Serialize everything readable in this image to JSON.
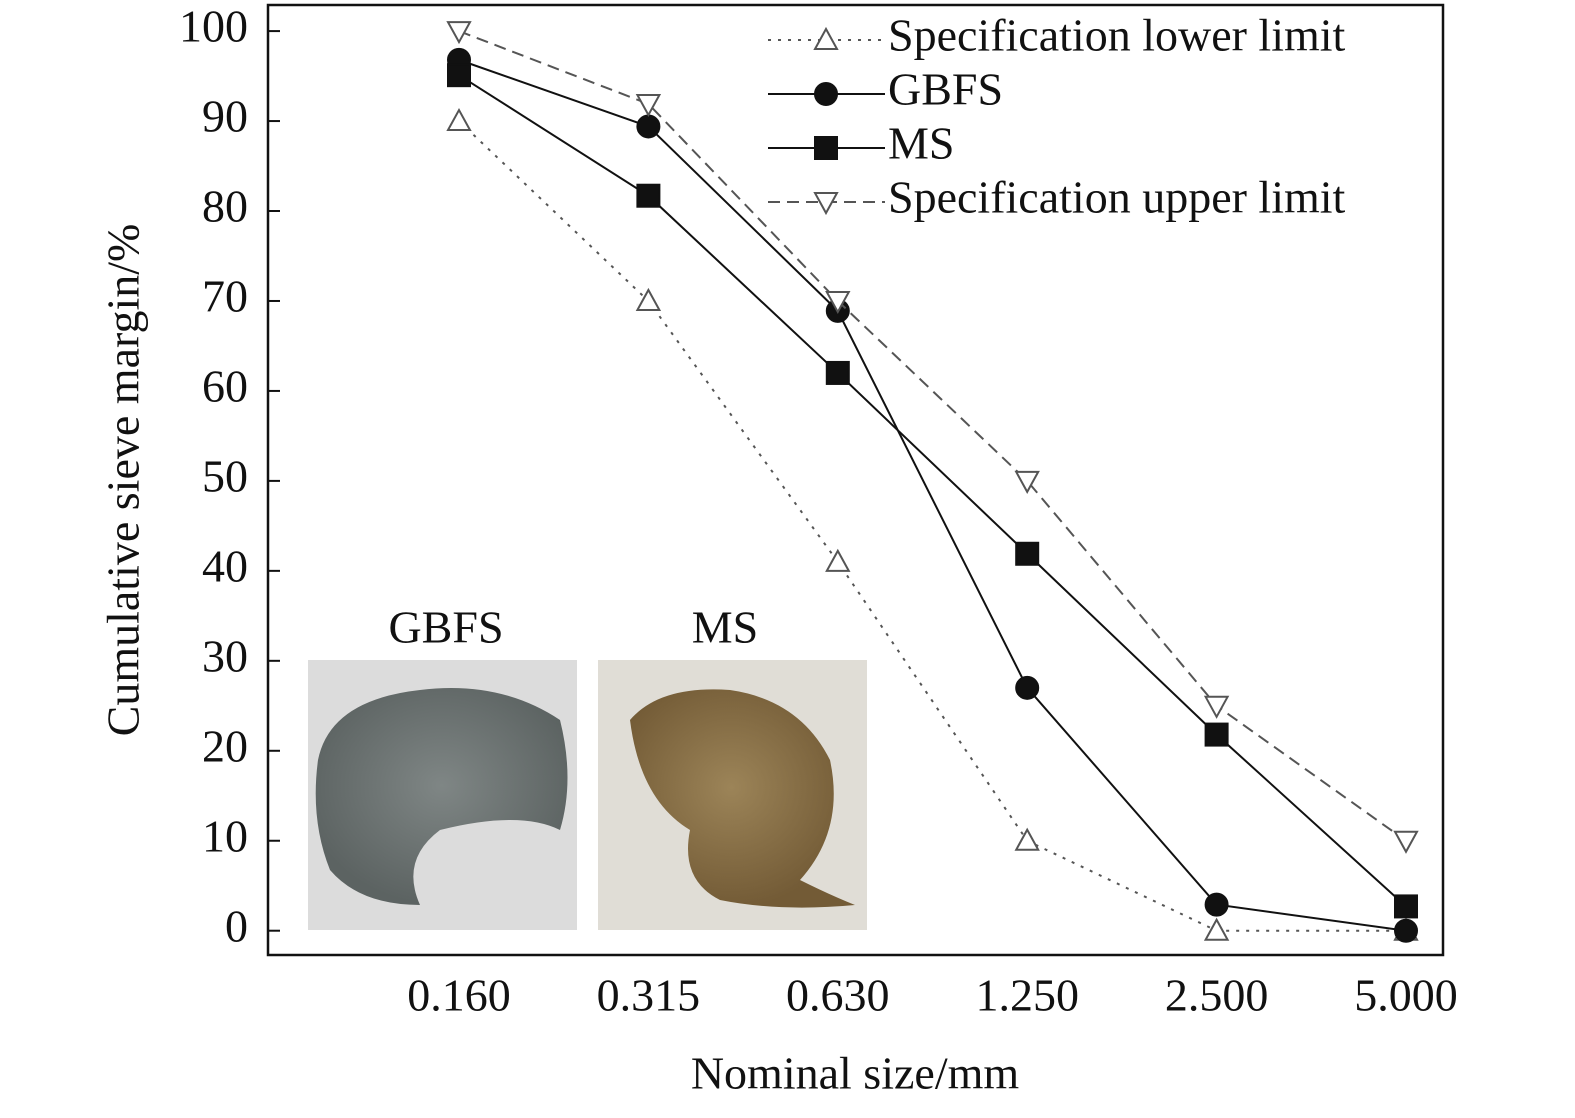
{
  "chart_data": {
    "type": "line",
    "x_label": "Nominal size/mm",
    "y_label": "Cumulative sieve margin/%",
    "categories": [
      "0.160",
      "0.315",
      "0.630",
      "1.250",
      "2.500",
      "5.000"
    ],
    "series": [
      {
        "name": "Specification lower limit",
        "color": "#555555",
        "marker": "triangle-up",
        "filled": false,
        "dash": "3,7",
        "values": [
          90,
          70,
          41,
          10,
          0,
          0
        ]
      },
      {
        "name": "GBFS",
        "color": "#111111",
        "marker": "circle",
        "filled": true,
        "dash": "none",
        "values": [
          96.8,
          89.4,
          68.9,
          27,
          2.9,
          0
        ]
      },
      {
        "name": "MS",
        "color": "#111111",
        "marker": "square",
        "filled": true,
        "dash": "none",
        "values": [
          95.1,
          81.7,
          62,
          41.9,
          21.8,
          2.7
        ]
      },
      {
        "name": "Specification upper limit",
        "color": "#555555",
        "marker": "triangle-down",
        "filled": false,
        "dash": "12,7",
        "values": [
          100,
          91.9,
          70,
          50,
          25,
          10
        ]
      }
    ],
    "ylim": [
      -2.7,
      102.9
    ],
    "yticks": [
      0,
      10,
      20,
      30,
      40,
      50,
      60,
      70,
      80,
      90,
      100
    ],
    "legend": "upper right",
    "annotations": [
      "GBFS",
      "MS"
    ]
  }
}
